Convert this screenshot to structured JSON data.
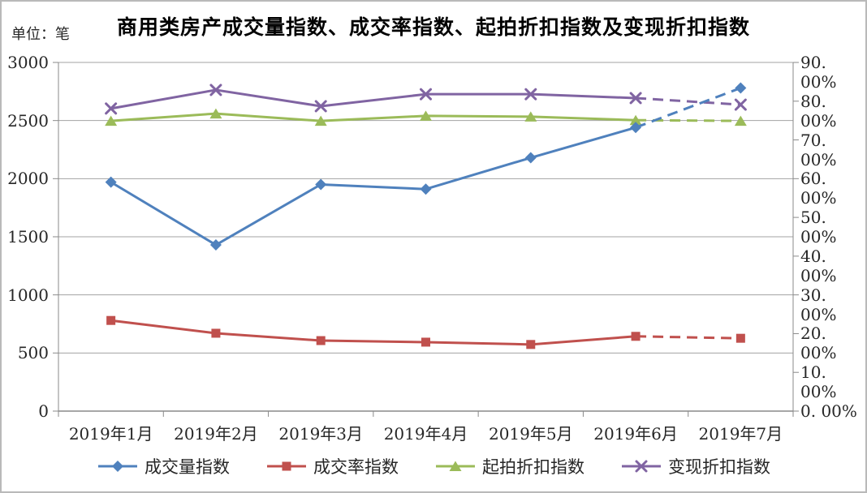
{
  "page": {
    "background": "#ffffff",
    "border_color": "#b9b9b9"
  },
  "chart_data": {
    "type": "line",
    "title": "商用类房产成交量指数、成交率指数、起拍折扣指数及变现折扣指数",
    "categories": [
      "2019年1月",
      "2019年2月",
      "2019年3月",
      "2019年4月",
      "2019年5月",
      "2019年6月",
      "2019年7月"
    ],
    "left_axis": {
      "unit_label": "单位：笔",
      "min": 0,
      "max": 3000,
      "tick_step": 500,
      "tick_labels": [
        "3000",
        "2500",
        "2000",
        "1500",
        "1000",
        "500",
        "0"
      ]
    },
    "right_axis": {
      "min": 0,
      "max": 90,
      "tick_step": 10,
      "tick_labels": [
        "90. 00%",
        "80. 00%",
        "70. 00%",
        "60. 00%",
        "50. 00%",
        "40. 00%",
        "30. 00%",
        "20. 00%",
        "10. 00%",
        "0. 00%"
      ]
    },
    "grid": true,
    "legend_position": "bottom",
    "series": [
      {
        "name": "成交量指数",
        "axis": "left",
        "marker": "diamond",
        "color": "#4F81BD",
        "values": [
          1970,
          1430,
          1950,
          1910,
          2180,
          2440,
          2780
        ],
        "dashed_from_index": 5
      },
      {
        "name": "成交率指数",
        "axis": "right",
        "marker": "square",
        "color": "#C0504D",
        "values": [
          23.4,
          20.1,
          18.2,
          17.8,
          17.2,
          19.3,
          18.8
        ],
        "dashed_from_index": 5
      },
      {
        "name": "起拍折扣指数",
        "axis": "right",
        "marker": "triangle",
        "color": "#9BBB59",
        "values": [
          74.9,
          76.8,
          74.9,
          76.2,
          76.0,
          75.1,
          74.9
        ],
        "dashed_from_index": 5
      },
      {
        "name": "变现折扣指数",
        "axis": "right",
        "marker": "x",
        "color": "#8064A2",
        "values": [
          78.1,
          82.9,
          78.7,
          81.8,
          81.8,
          80.8,
          79.1
        ],
        "dashed_from_index": 5
      }
    ],
    "colors": {
      "gridline": "#a3a3a3",
      "axis": "#8a8a8a",
      "tick_text": "#262626",
      "title_text": "#000000"
    }
  }
}
